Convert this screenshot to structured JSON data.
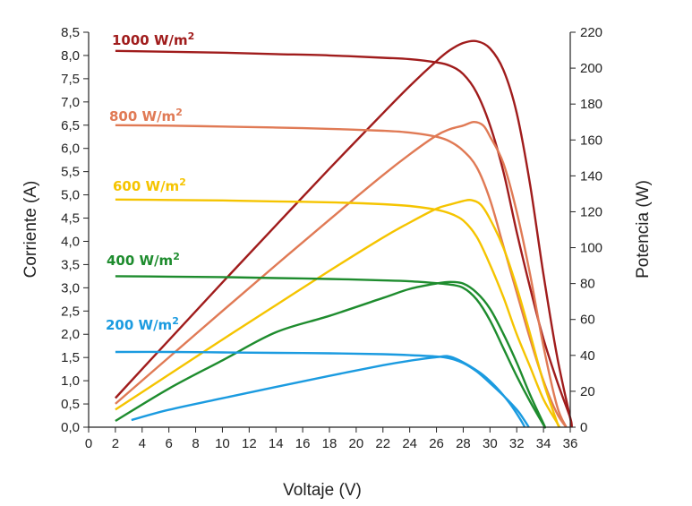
{
  "chart_data": {
    "type": "line",
    "title": "",
    "xlabel": "Voltaje (V)",
    "ylabel_left": "Corriente (A)",
    "ylabel_right": "Potencia (W)",
    "xlim": [
      0,
      36
    ],
    "ylim_left": [
      0,
      8.5
    ],
    "ylim_right": [
      0,
      220
    ],
    "x_ticks": [
      "0",
      "2",
      "4",
      "6",
      "8",
      "10",
      "12",
      "14",
      "16",
      "18",
      "20",
      "22",
      "24",
      "26",
      "28",
      "30",
      "32",
      "34",
      "36"
    ],
    "y_left_ticks": [
      "0,0",
      "0,5",
      "1,0",
      "1,5",
      "2,0",
      "2,5",
      "3,0",
      "3,5",
      "4,0",
      "4,5",
      "5,0",
      "5,5",
      "6,0",
      "6,5",
      "7,0",
      "7,5",
      "8,0",
      "8,5"
    ],
    "y_right_ticks": [
      "0",
      "20",
      "40",
      "60",
      "80",
      "100",
      "120",
      "140",
      "160",
      "180",
      "200",
      "220"
    ],
    "grid": false,
    "series": [
      {
        "name": "1000 W/m²",
        "label_base": "1000 W/m",
        "label_sup": "2",
        "color": "#a01c1c",
        "current": [
          [
            2,
            8.1
          ],
          [
            6,
            8.08
          ],
          [
            10,
            8.06
          ],
          [
            14,
            8.03
          ],
          [
            18,
            8.0
          ],
          [
            22,
            7.95
          ],
          [
            24,
            7.92
          ],
          [
            26,
            7.85
          ],
          [
            27,
            7.78
          ],
          [
            28,
            7.6
          ],
          [
            29,
            7.2
          ],
          [
            30,
            6.5
          ],
          [
            31,
            5.5
          ],
          [
            32,
            4.2
          ],
          [
            33,
            3.0
          ],
          [
            34,
            1.9
          ],
          [
            35,
            1.0
          ],
          [
            36,
            0.2
          ],
          [
            36.1,
            0
          ]
        ],
        "power": [
          [
            2,
            16.2
          ],
          [
            6,
            48.5
          ],
          [
            10,
            80.6
          ],
          [
            14,
            112.4
          ],
          [
            18,
            144
          ],
          [
            22,
            174.9
          ],
          [
            24,
            190
          ],
          [
            26,
            204
          ],
          [
            27,
            210
          ],
          [
            28,
            214
          ],
          [
            29,
            215
          ],
          [
            30,
            211
          ],
          [
            31,
            199
          ],
          [
            32,
            175
          ],
          [
            33,
            135
          ],
          [
            34,
            85
          ],
          [
            35,
            40
          ],
          [
            36,
            5
          ],
          [
            36.1,
            0
          ]
        ]
      },
      {
        "name": "800 W/m²",
        "label_base": "800 W/m",
        "label_sup": "2",
        "color": "#e07a55",
        "current": [
          [
            2,
            6.5
          ],
          [
            6,
            6.49
          ],
          [
            10,
            6.47
          ],
          [
            14,
            6.45
          ],
          [
            18,
            6.42
          ],
          [
            22,
            6.38
          ],
          [
            24,
            6.34
          ],
          [
            26,
            6.25
          ],
          [
            27,
            6.15
          ],
          [
            28,
            5.95
          ],
          [
            29,
            5.6
          ],
          [
            30,
            4.9
          ],
          [
            31,
            3.9
          ],
          [
            32,
            2.9
          ],
          [
            33,
            1.9
          ],
          [
            34,
            1.0
          ],
          [
            35,
            0.3
          ],
          [
            35.7,
            0
          ]
        ],
        "power": [
          [
            2,
            13
          ],
          [
            6,
            38.9
          ],
          [
            10,
            64.7
          ],
          [
            14,
            90.3
          ],
          [
            18,
            115.6
          ],
          [
            22,
            140.4
          ],
          [
            24,
            152
          ],
          [
            26,
            162.5
          ],
          [
            27,
            166
          ],
          [
            28,
            168
          ],
          [
            28.8,
            170
          ],
          [
            29.5,
            168
          ],
          [
            30,
            162
          ],
          [
            31,
            147
          ],
          [
            32,
            120
          ],
          [
            33,
            85
          ],
          [
            34,
            45
          ],
          [
            35,
            12
          ],
          [
            35.7,
            0
          ]
        ]
      },
      {
        "name": "600 W/m²",
        "label_base": "600 W/m",
        "label_sup": "2",
        "color": "#f5c400",
        "current": [
          [
            2,
            4.9
          ],
          [
            6,
            4.89
          ],
          [
            10,
            4.88
          ],
          [
            14,
            4.86
          ],
          [
            18,
            4.84
          ],
          [
            22,
            4.8
          ],
          [
            24,
            4.76
          ],
          [
            26,
            4.68
          ],
          [
            27,
            4.6
          ],
          [
            28,
            4.45
          ],
          [
            29,
            4.1
          ],
          [
            30,
            3.5
          ],
          [
            31,
            2.8
          ],
          [
            32,
            2.0
          ],
          [
            33,
            1.3
          ],
          [
            34,
            0.6
          ],
          [
            35,
            0.1
          ],
          [
            35.2,
            0
          ]
        ],
        "power": [
          [
            2,
            9.8
          ],
          [
            6,
            29.3
          ],
          [
            10,
            48.8
          ],
          [
            14,
            68
          ],
          [
            18,
            87.1
          ],
          [
            22,
            105.6
          ],
          [
            24,
            114
          ],
          [
            26,
            121.7
          ],
          [
            27,
            124
          ],
          [
            28,
            126
          ],
          [
            28.6,
            126.5
          ],
          [
            29.3,
            124
          ],
          [
            30,
            116
          ],
          [
            31,
            100
          ],
          [
            32,
            78
          ],
          [
            33,
            52
          ],
          [
            34,
            25
          ],
          [
            35,
            3
          ],
          [
            35.2,
            0
          ]
        ]
      },
      {
        "name": "400 W/m²",
        "label_base": "400 W/m",
        "label_sup": "2",
        "color": "#1e8c2e",
        "current": [
          [
            2,
            3.25
          ],
          [
            6,
            3.24
          ],
          [
            10,
            3.23
          ],
          [
            14,
            3.21
          ],
          [
            18,
            3.19
          ],
          [
            22,
            3.16
          ],
          [
            24,
            3.14
          ],
          [
            26,
            3.1
          ],
          [
            27,
            3.07
          ],
          [
            28,
            3.0
          ],
          [
            29,
            2.75
          ],
          [
            30,
            2.3
          ],
          [
            31,
            1.7
          ],
          [
            32,
            1.1
          ],
          [
            33,
            0.55
          ],
          [
            34,
            0.05
          ],
          [
            34.1,
            0
          ]
        ],
        "power": [
          [
            2,
            3.5
          ],
          [
            6,
            21.5
          ],
          [
            10,
            37.2
          ],
          [
            14,
            52.9
          ],
          [
            18,
            62
          ],
          [
            22,
            72
          ],
          [
            24,
            77
          ],
          [
            26,
            80
          ],
          [
            27,
            80.9
          ],
          [
            28,
            80
          ],
          [
            29,
            75
          ],
          [
            30,
            66
          ],
          [
            31,
            52
          ],
          [
            32,
            36
          ],
          [
            33,
            18
          ],
          [
            34,
            2
          ],
          [
            34.1,
            0
          ]
        ]
      },
      {
        "name": "200 W/m²",
        "label_base": "200 W/m",
        "label_sup": "2",
        "color": "#1b9be0",
        "current": [
          [
            2,
            1.62
          ],
          [
            6,
            1.62
          ],
          [
            10,
            1.61
          ],
          [
            14,
            1.6
          ],
          [
            18,
            1.59
          ],
          [
            22,
            1.57
          ],
          [
            24,
            1.55
          ],
          [
            26,
            1.52
          ],
          [
            27,
            1.48
          ],
          [
            28,
            1.38
          ],
          [
            29,
            1.2
          ],
          [
            30,
            0.95
          ],
          [
            31,
            0.68
          ],
          [
            32,
            0.38
          ],
          [
            32.5,
            0.18
          ],
          [
            32.9,
            0
          ]
        ],
        "power": [
          [
            3.2,
            4
          ],
          [
            6,
            9.7
          ],
          [
            10,
            16.1
          ],
          [
            14,
            22.4
          ],
          [
            18,
            28.6
          ],
          [
            22,
            34.5
          ],
          [
            24,
            37
          ],
          [
            26,
            39
          ],
          [
            26.8,
            39.6
          ],
          [
            27.5,
            38
          ],
          [
            28.5,
            34
          ],
          [
            29.5,
            29
          ],
          [
            30.5,
            22
          ],
          [
            31.5,
            13
          ],
          [
            32.3,
            4
          ],
          [
            32.6,
            0
          ]
        ]
      }
    ]
  }
}
